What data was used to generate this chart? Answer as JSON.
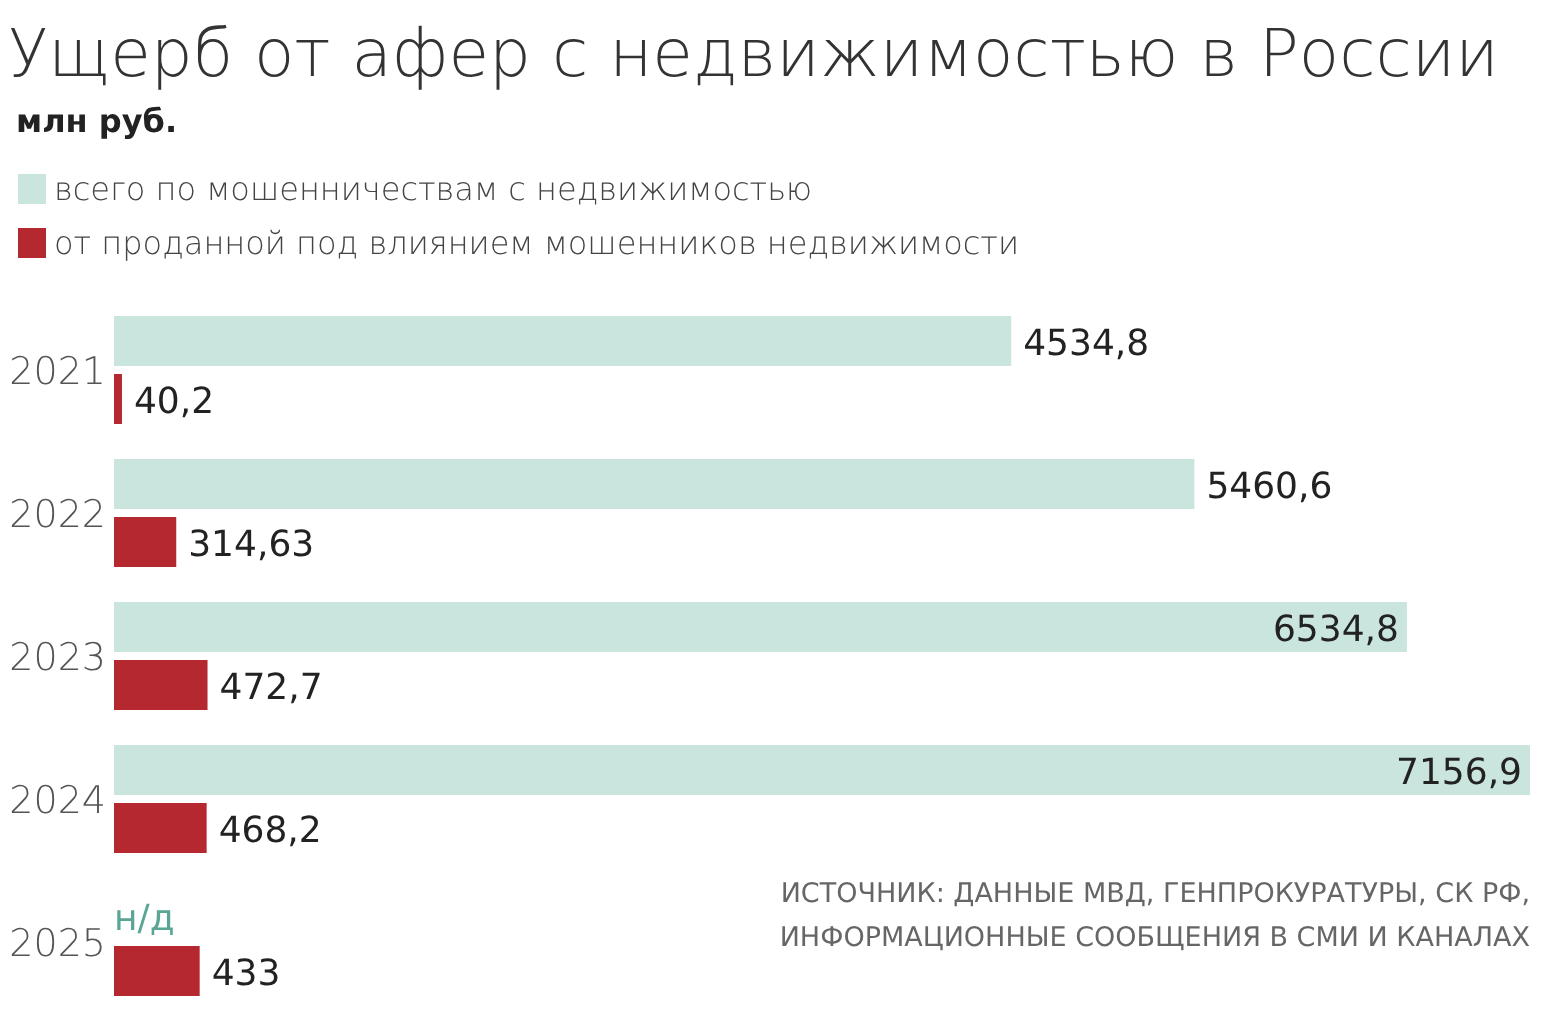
{
  "chart_data": {
    "type": "bar",
    "orientation": "horizontal",
    "title": "Ущерб от афер с недвижимостью в России",
    "subtitle": "млн руб.",
    "categories": [
      "2021",
      "2022",
      "2023",
      "2024",
      "2025"
    ],
    "series": [
      {
        "name": "всего по мошенничествам с недвижимостью",
        "color": "#c9e5dd",
        "values": [
          4534.8,
          5460.6,
          6534.8,
          7156.9,
          null
        ],
        "value_labels": [
          "4534,8",
          "5460,6",
          "6534,8",
          "7156,9",
          "н/д"
        ]
      },
      {
        "name": "от проданной под влиянием мошенников недвижимости",
        "color": "#b5282f",
        "values": [
          40.2,
          314.63,
          472.7,
          468.2,
          433
        ],
        "value_labels": [
          "40,2",
          "314,63",
          "472,7",
          "468,2",
          "433"
        ]
      }
    ],
    "legend": "top left",
    "annotations": [
      "ИСТОЧНИК: ДАННЫЕ МВД, ГЕНПРОКУРАТУРЫ, СК РФ,\nИНФОРМАЦИОННЫЕ СООБЩЕНИЯ В СМИ И КАНАЛАХ"
    ]
  }
}
